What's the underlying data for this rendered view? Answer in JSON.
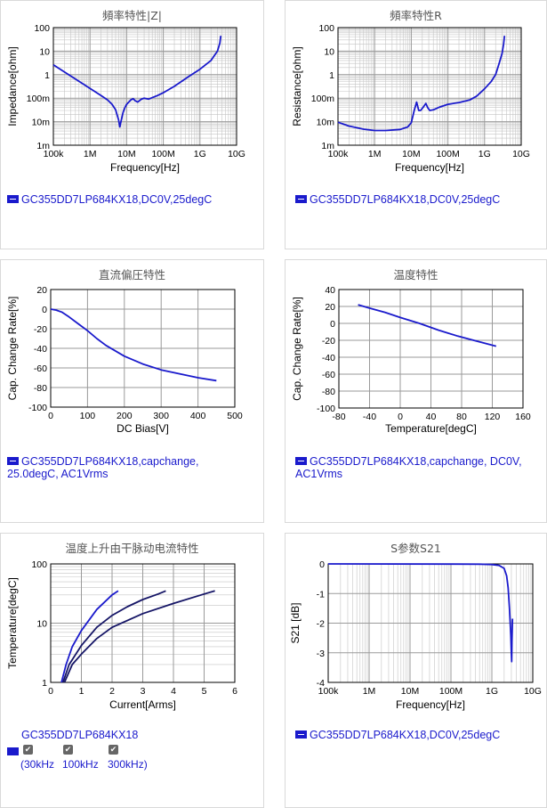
{
  "colors": {
    "curve": "#1a1acc",
    "curve_dark": "#151566",
    "grid": "#9a9a9a",
    "legend": "#1a1acc"
  },
  "panels": [
    {
      "title": "頻率特性|Z|",
      "legend": "GC355DD7LP684KX18,DC0V,25degC",
      "chart_data": {
        "type": "line",
        "xscale": "log",
        "yscale": "log",
        "xlabel": "Frequency[Hz]",
        "ylabel": "Impedance[ohm]",
        "xlim": [
          100000,
          10000000000
        ],
        "ylim": [
          0.001,
          100
        ],
        "xticks": [
          [
            "100k",
            100000
          ],
          [
            "1M",
            1000000
          ],
          [
            "10M",
            10000000
          ],
          [
            "100M",
            100000000
          ],
          [
            "1G",
            1000000000
          ],
          [
            "10G",
            10000000000
          ]
        ],
        "yticks": [
          [
            "100",
            100
          ],
          [
            "10",
            10
          ],
          [
            "1",
            1
          ],
          [
            "100m",
            0.1
          ],
          [
            "10m",
            0.01
          ],
          [
            "1m",
            0.001
          ]
        ],
        "series": [
          {
            "points": [
              [
                100000,
                2.6
              ],
              [
                200000,
                1.3
              ],
              [
                500000,
                0.52
              ],
              [
                1000000,
                0.26
              ],
              [
                2000000,
                0.13
              ],
              [
                3000000,
                0.085
              ],
              [
                4000000,
                0.055
              ],
              [
                5000000,
                0.032
              ],
              [
                6000000,
                0.012
              ],
              [
                6500000,
                0.006
              ],
              [
                7000000,
                0.01
              ],
              [
                8000000,
                0.025
              ],
              [
                9000000,
                0.04
              ],
              [
                10000000,
                0.055
              ],
              [
                13000000,
                0.085
              ],
              [
                15000000,
                0.095
              ],
              [
                17000000,
                0.078
              ],
              [
                20000000,
                0.068
              ],
              [
                25000000,
                0.09
              ],
              [
                30000000,
                0.1
              ],
              [
                40000000,
                0.092
              ],
              [
                50000000,
                0.105
              ],
              [
                70000000,
                0.13
              ],
              [
                100000000,
                0.17
              ],
              [
                200000000,
                0.32
              ],
              [
                500000000,
                0.85
              ],
              [
                1000000000,
                1.7
              ],
              [
                2000000000,
                4
              ],
              [
                3000000000,
                10
              ],
              [
                3500000000,
                22
              ],
              [
                3700000000,
                45
              ]
            ]
          }
        ]
      }
    },
    {
      "title": "頻率特性R",
      "legend": "GC355DD7LP684KX18,DC0V,25degC",
      "chart_data": {
        "type": "line",
        "xscale": "log",
        "yscale": "log",
        "xlabel": "Frequency[Hz]",
        "ylabel": "Resistance[ohm]",
        "xlim": [
          100000,
          10000000000
        ],
        "ylim": [
          0.001,
          100
        ],
        "xticks": [
          [
            "100k",
            100000
          ],
          [
            "1M",
            1000000
          ],
          [
            "10M",
            10000000
          ],
          [
            "100M",
            100000000
          ],
          [
            "1G",
            1000000000
          ],
          [
            "10G",
            10000000000
          ]
        ],
        "yticks": [
          [
            "100",
            100
          ],
          [
            "10",
            10
          ],
          [
            "1",
            1
          ],
          [
            "100m",
            0.1
          ],
          [
            "10m",
            0.01
          ],
          [
            "1m",
            0.001
          ]
        ],
        "series": [
          {
            "points": [
              [
                100000,
                0.0095
              ],
              [
                200000,
                0.0065
              ],
              [
                500000,
                0.0048
              ],
              [
                1000000,
                0.0042
              ],
              [
                2000000,
                0.0042
              ],
              [
                5000000,
                0.0047
              ],
              [
                8000000,
                0.006
              ],
              [
                10000000,
                0.009
              ],
              [
                12000000,
                0.03
              ],
              [
                14000000,
                0.068
              ],
              [
                16000000,
                0.03
              ],
              [
                18000000,
                0.03
              ],
              [
                22000000,
                0.045
              ],
              [
                25000000,
                0.06
              ],
              [
                28000000,
                0.04
              ],
              [
                32000000,
                0.03
              ],
              [
                40000000,
                0.032
              ],
              [
                60000000,
                0.042
              ],
              [
                100000000,
                0.055
              ],
              [
                200000000,
                0.065
              ],
              [
                400000000,
                0.085
              ],
              [
                600000000,
                0.12
              ],
              [
                1000000000,
                0.25
              ],
              [
                1500000000,
                0.5
              ],
              [
                2000000000,
                1
              ],
              [
                2500000000,
                3
              ],
              [
                3000000000,
                8
              ],
              [
                3300000000,
                20
              ],
              [
                3500000000,
                45
              ]
            ]
          }
        ]
      }
    },
    {
      "title": "直流偏圧特性",
      "legend": "GC355DD7LP684KX18,capchange, 25.0degC, AC1Vrms",
      "chart_data": {
        "type": "line",
        "xlabel": "DC Bias[V]",
        "ylabel": "Cap. Change Rate[%]",
        "xlim": [
          0,
          500
        ],
        "ylim": [
          -100,
          20
        ],
        "xticks": [
          [
            "0",
            0
          ],
          [
            "100",
            100
          ],
          [
            "200",
            200
          ],
          [
            "300",
            300
          ],
          [
            "400",
            400
          ],
          [
            "500",
            500
          ]
        ],
        "yticks": [
          [
            "20",
            20
          ],
          [
            "0",
            0
          ],
          [
            "-20",
            -20
          ],
          [
            "-40",
            -40
          ],
          [
            "-60",
            -60
          ],
          [
            "-80",
            -80
          ],
          [
            "-100",
            -100
          ]
        ],
        "series": [
          {
            "points": [
              [
                0,
                0
              ],
              [
                15,
                -1
              ],
              [
                30,
                -3
              ],
              [
                50,
                -8
              ],
              [
                75,
                -15
              ],
              [
                100,
                -22
              ],
              [
                125,
                -30
              ],
              [
                150,
                -37
              ],
              [
                200,
                -48
              ],
              [
                250,
                -56
              ],
              [
                300,
                -62
              ],
              [
                350,
                -66
              ],
              [
                400,
                -70
              ],
              [
                450,
                -73
              ]
            ]
          }
        ]
      }
    },
    {
      "title": "温度特性",
      "legend": "GC355DD7LP684KX18,capchange, DC0V, AC1Vrms",
      "chart_data": {
        "type": "line",
        "xlabel": "Temperature[degC]",
        "ylabel": "Cap. Change Rate[%]",
        "xlim": [
          -80,
          160
        ],
        "ylim": [
          -100,
          40
        ],
        "xticks": [
          [
            "-80",
            -80
          ],
          [
            "-40",
            -40
          ],
          [
            "0",
            0
          ],
          [
            "40",
            40
          ],
          [
            "80",
            80
          ],
          [
            "120",
            120
          ],
          [
            "160",
            160
          ]
        ],
        "yticks": [
          [
            "40",
            40
          ],
          [
            "20",
            20
          ],
          [
            "0",
            0
          ],
          [
            "-20",
            -20
          ],
          [
            "-40",
            -40
          ],
          [
            "-60",
            -60
          ],
          [
            "-80",
            -80
          ],
          [
            "-100",
            -100
          ]
        ],
        "series": [
          {
            "points": [
              [
                -55,
                22
              ],
              [
                -40,
                18
              ],
              [
                -20,
                13
              ],
              [
                0,
                7
              ],
              [
                25,
                0
              ],
              [
                50,
                -8
              ],
              [
                75,
                -15
              ],
              [
                100,
                -21
              ],
              [
                125,
                -27
              ]
            ]
          }
        ]
      }
    },
    {
      "title": "温度上升由干脉动电流特性",
      "legend": "GC355DD7LP684KX18",
      "checks": [
        "30kHz",
        "100kHz",
        "300kHz"
      ],
      "chart_data": {
        "type": "line",
        "yscale": "log",
        "xlabel": "Current[Arms]",
        "ylabel": "Temperature[degC]",
        "xlim": [
          0,
          6
        ],
        "ylim": [
          1,
          100
        ],
        "xticks": [
          [
            "0",
            0
          ],
          [
            "1",
            1
          ],
          [
            "2",
            2
          ],
          [
            "3",
            3
          ],
          [
            "4",
            4
          ],
          [
            "5",
            5
          ],
          [
            "6",
            6
          ]
        ],
        "yticks": [
          [
            "100",
            100
          ],
          [
            "10",
            10
          ],
          [
            "1",
            1
          ]
        ],
        "series": [
          {
            "name": "300kHz",
            "points": [
              [
                0.35,
                1
              ],
              [
                0.5,
                2
              ],
              [
                0.7,
                4
              ],
              [
                1,
                7.5
              ],
              [
                1.5,
                17
              ],
              [
                2,
                30
              ],
              [
                2.2,
                35
              ]
            ]
          },
          {
            "name": "100kHz",
            "points": [
              [
                0.4,
                1
              ],
              [
                0.6,
                2
              ],
              [
                1,
                4.2
              ],
              [
                1.5,
                8.5
              ],
              [
                2,
                13.5
              ],
              [
                2.5,
                19
              ],
              [
                3,
                25
              ],
              [
                3.5,
                31
              ],
              [
                3.75,
                35
              ]
            ]
          },
          {
            "name": "30kHz",
            "points": [
              [
                0.45,
                1
              ],
              [
                0.7,
                2
              ],
              [
                1,
                3
              ],
              [
                1.5,
                5.5
              ],
              [
                2,
                8.5
              ],
              [
                3,
                14.5
              ],
              [
                4,
                21.5
              ],
              [
                5,
                31
              ],
              [
                5.35,
                35
              ]
            ]
          }
        ]
      }
    },
    {
      "title": "S参数S21",
      "legend": "GC355DD7LP684KX18,DC0V,25degC",
      "chart_data": {
        "type": "line",
        "xscale": "log",
        "xlabel": "Frequency[Hz]",
        "ylabel": "S21 [dB]",
        "xlim": [
          100000,
          10000000000
        ],
        "ylim": [
          -4,
          0
        ],
        "xticks": [
          [
            "100k",
            100000
          ],
          [
            "1M",
            1000000
          ],
          [
            "10M",
            10000000
          ],
          [
            "100M",
            100000000
          ],
          [
            "1G",
            1000000000
          ],
          [
            "10G",
            10000000000
          ]
        ],
        "yticks": [
          [
            "0",
            0
          ],
          [
            "-1",
            -1
          ],
          [
            "-2",
            -2
          ],
          [
            "-3",
            -3
          ],
          [
            "-4",
            -4
          ]
        ],
        "series": [
          {
            "points": [
              [
                100000,
                0
              ],
              [
                100000000,
                -0.005
              ],
              [
                500000000,
                -0.01
              ],
              [
                1000000000,
                -0.02
              ],
              [
                1500000000,
                -0.05
              ],
              [
                2000000000,
                -0.15
              ],
              [
                2300000000,
                -0.4
              ],
              [
                2500000000,
                -0.8
              ],
              [
                2700000000,
                -1.5
              ],
              [
                2900000000,
                -2.4
              ],
              [
                3000000000,
                -3.0
              ],
              [
                3050000000,
                -3.3
              ],
              [
                3100000000,
                -2.6
              ],
              [
                3200000000,
                -1.85
              ]
            ]
          }
        ]
      }
    }
  ]
}
